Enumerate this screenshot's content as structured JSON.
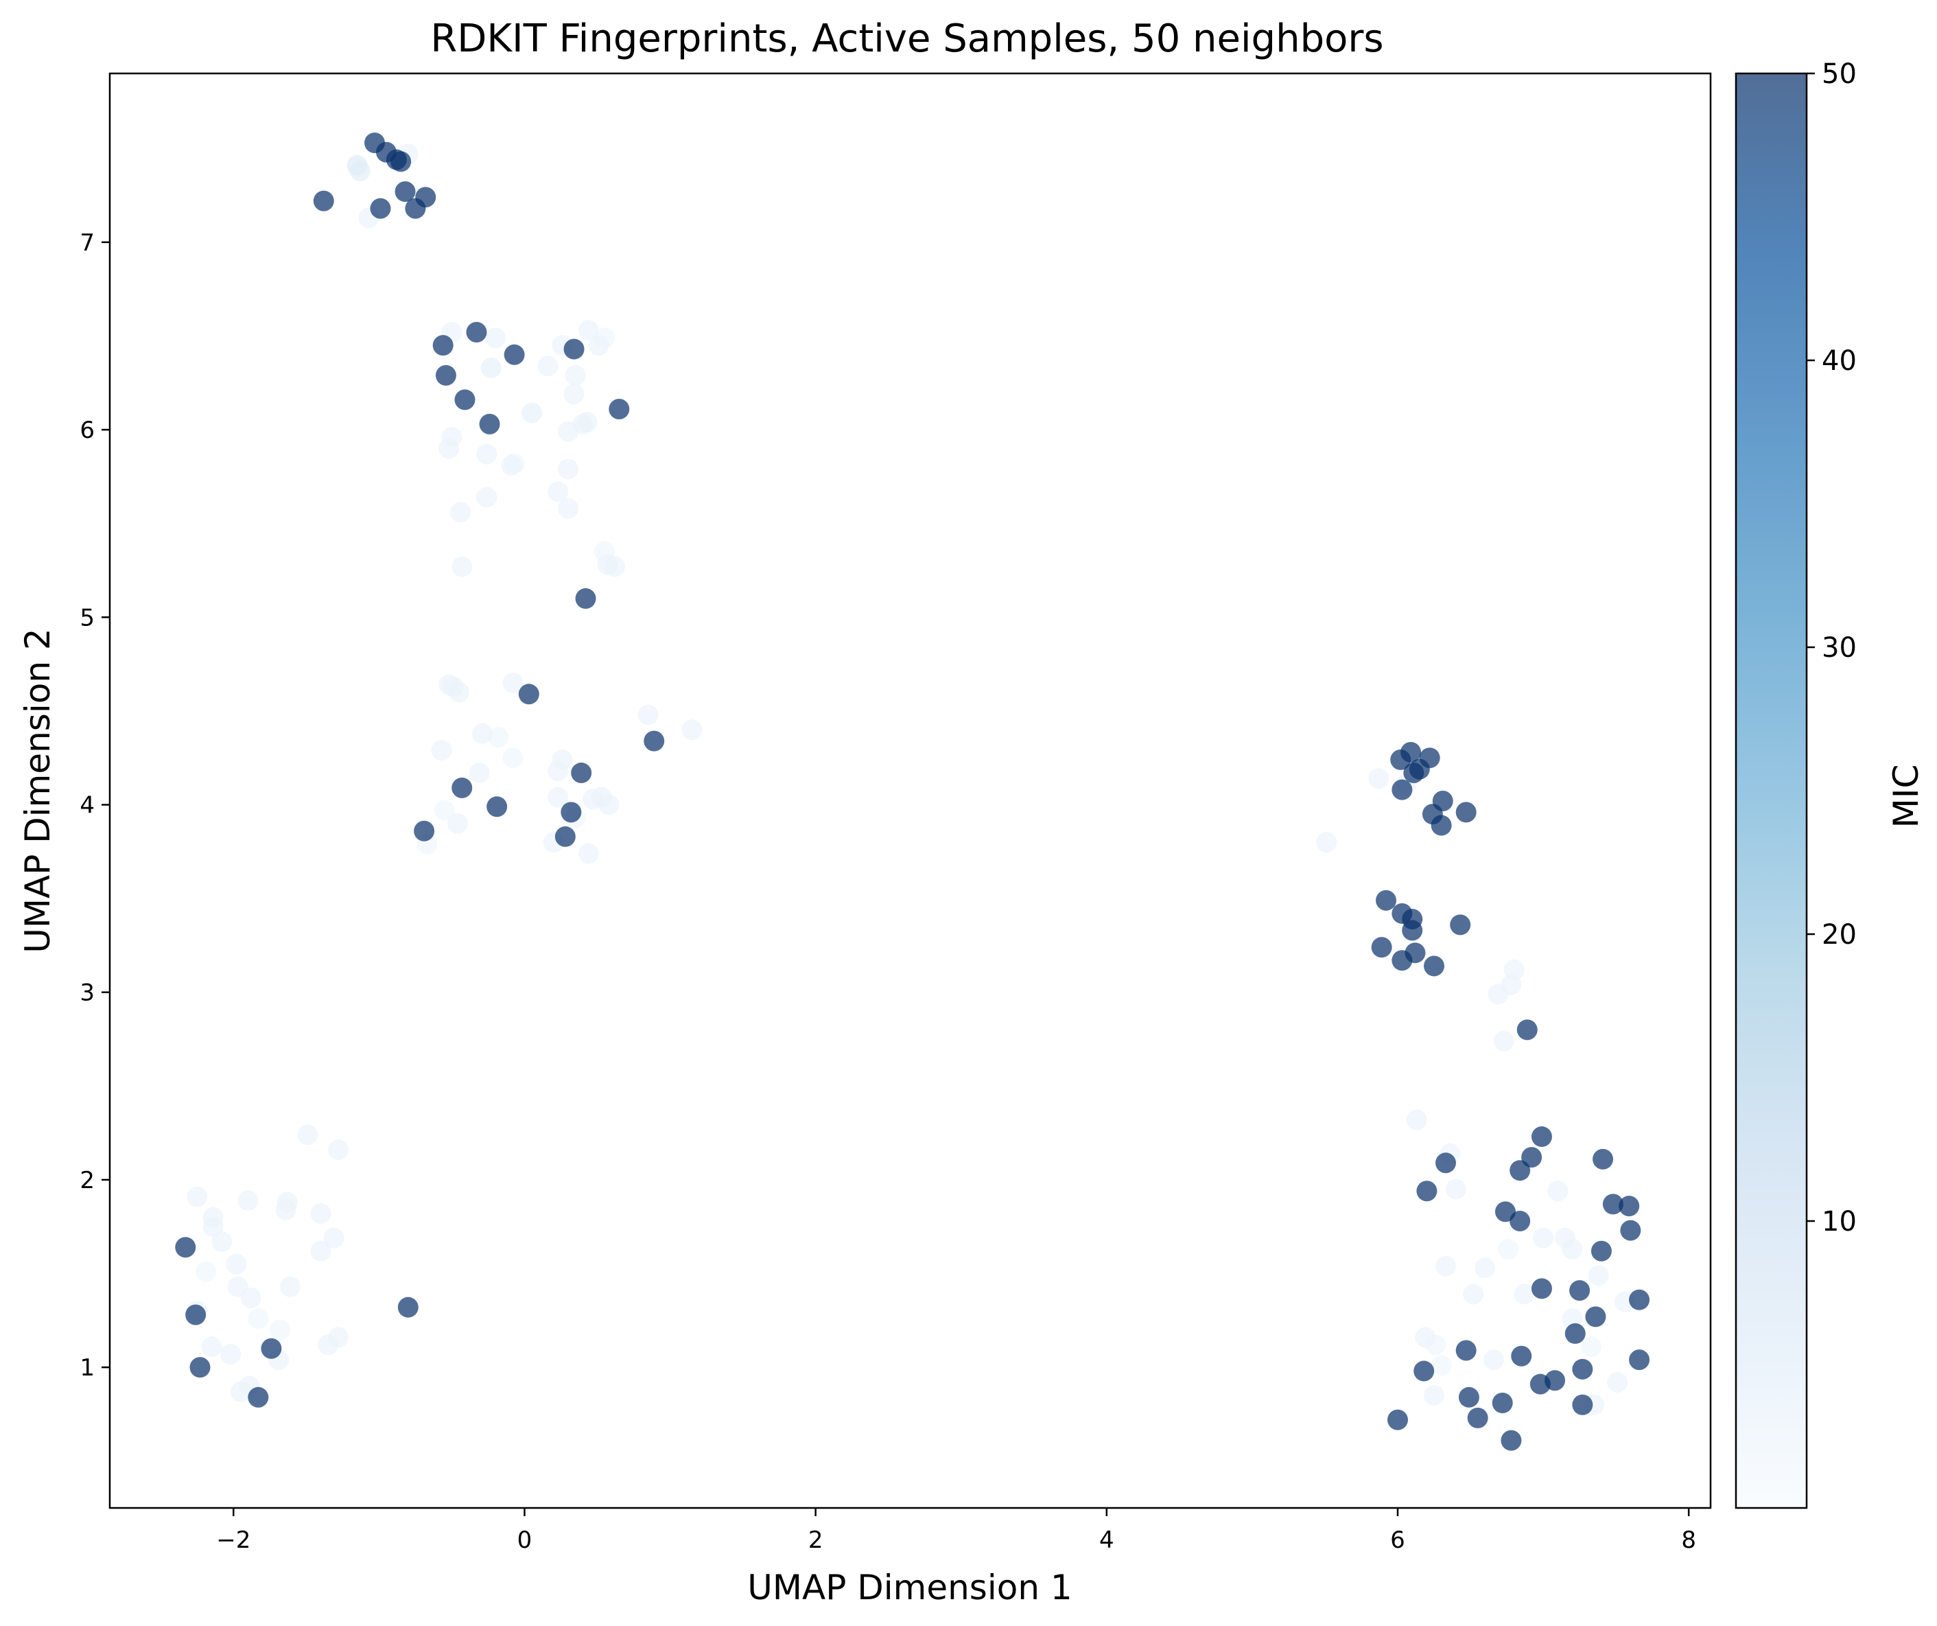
{
  "chart_data": {
    "type": "scatter",
    "title": "RDKIT Fingerprints, Active Samples, 50 neighbors",
    "xlabel": "UMAP Dimension 1",
    "ylabel": "UMAP Dimension 2",
    "xlim": [
      -2.85,
      8.15
    ],
    "ylim": [
      0.25,
      7.9
    ],
    "xticks": [
      -2,
      0,
      2,
      4,
      6,
      8
    ],
    "xtick_labels": [
      "−2",
      "0",
      "2",
      "4",
      "6",
      "8"
    ],
    "yticks": [
      1,
      2,
      3,
      4,
      5,
      6,
      7
    ],
    "ytick_labels": [
      "1",
      "2",
      "3",
      "4",
      "5",
      "6",
      "7"
    ],
    "grid": false,
    "colorbar": {
      "label": "MIC",
      "range": [
        0,
        50
      ],
      "ticks": [
        10,
        20,
        30,
        40,
        50
      ],
      "tick_labels": [
        "10",
        "20",
        "30",
        "40",
        "50"
      ],
      "colormap": "Blues",
      "colors": [
        "#f7fbff",
        "#deebf7",
        "#c6dbef",
        "#9ecae1",
        "#6baed6",
        "#4292c6",
        "#2171b5",
        "#08519c",
        "#08306b"
      ]
    },
    "marker_alpha": 0.7,
    "points": [
      {
        "x": -1.03,
        "y": 7.53,
        "mic": 50
      },
      {
        "x": -0.95,
        "y": 7.48,
        "mic": 50
      },
      {
        "x": -0.88,
        "y": 7.44,
        "mic": 50
      },
      {
        "x": -0.8,
        "y": 7.47,
        "mic": 3
      },
      {
        "x": -1.15,
        "y": 7.41,
        "mic": 6
      },
      {
        "x": -1.13,
        "y": 7.38,
        "mic": 5
      },
      {
        "x": -0.85,
        "y": 7.43,
        "mic": 50
      },
      {
        "x": -0.82,
        "y": 7.27,
        "mic": 50
      },
      {
        "x": -0.68,
        "y": 7.24,
        "mic": 50
      },
      {
        "x": -1.38,
        "y": 7.22,
        "mic": 50
      },
      {
        "x": -0.99,
        "y": 7.18,
        "mic": 50
      },
      {
        "x": -0.75,
        "y": 7.18,
        "mic": 50
      },
      {
        "x": -1.07,
        "y": 7.13,
        "mic": 3
      },
      {
        "x": -0.56,
        "y": 6.45,
        "mic": 50
      },
      {
        "x": -0.33,
        "y": 6.52,
        "mic": 50
      },
      {
        "x": -0.5,
        "y": 6.52,
        "mic": 3
      },
      {
        "x": -0.2,
        "y": 6.49,
        "mic": 3
      },
      {
        "x": -0.07,
        "y": 6.4,
        "mic": 50
      },
      {
        "x": -0.23,
        "y": 6.33,
        "mic": 4
      },
      {
        "x": -0.54,
        "y": 6.29,
        "mic": 50
      },
      {
        "x": -0.41,
        "y": 6.16,
        "mic": 50
      },
      {
        "x": -0.24,
        "y": 6.03,
        "mic": 50
      },
      {
        "x": 0.05,
        "y": 6.09,
        "mic": 4
      },
      {
        "x": 0.26,
        "y": 6.45,
        "mic": 3
      },
      {
        "x": 0.34,
        "y": 6.43,
        "mic": 50
      },
      {
        "x": 0.44,
        "y": 6.53,
        "mic": 3
      },
      {
        "x": 0.51,
        "y": 6.45,
        "mic": 3
      },
      {
        "x": 0.55,
        "y": 6.49,
        "mic": 2
      },
      {
        "x": 0.16,
        "y": 6.34,
        "mic": 3
      },
      {
        "x": 0.35,
        "y": 6.29,
        "mic": 3
      },
      {
        "x": 0.34,
        "y": 6.19,
        "mic": 3
      },
      {
        "x": 0.65,
        "y": 6.11,
        "mic": 50
      },
      {
        "x": 0.4,
        "y": 6.03,
        "mic": 3
      },
      {
        "x": 0.3,
        "y": 5.99,
        "mic": 3
      },
      {
        "x": 0.43,
        "y": 6.04,
        "mic": 3
      },
      {
        "x": -0.5,
        "y": 5.96,
        "mic": 3
      },
      {
        "x": -0.52,
        "y": 5.9,
        "mic": 3
      },
      {
        "x": -0.26,
        "y": 5.87,
        "mic": 3
      },
      {
        "x": -0.09,
        "y": 5.81,
        "mic": 3
      },
      {
        "x": -0.07,
        "y": 5.82,
        "mic": 2
      },
      {
        "x": 0.3,
        "y": 5.79,
        "mic": 3
      },
      {
        "x": 0.23,
        "y": 5.67,
        "mic": 3
      },
      {
        "x": -0.26,
        "y": 5.64,
        "mic": 3
      },
      {
        "x": -0.44,
        "y": 5.56,
        "mic": 3
      },
      {
        "x": 0.3,
        "y": 5.58,
        "mic": 3
      },
      {
        "x": 0.55,
        "y": 5.35,
        "mic": 2
      },
      {
        "x": 0.57,
        "y": 5.28,
        "mic": 3
      },
      {
        "x": 0.62,
        "y": 5.27,
        "mic": 3
      },
      {
        "x": -0.43,
        "y": 5.27,
        "mic": 3
      },
      {
        "x": 0.42,
        "y": 5.1,
        "mic": 50
      },
      {
        "x": -0.52,
        "y": 4.64,
        "mic": 3
      },
      {
        "x": -0.49,
        "y": 4.63,
        "mic": 3
      },
      {
        "x": -0.45,
        "y": 4.6,
        "mic": 3
      },
      {
        "x": -0.08,
        "y": 4.65,
        "mic": 3
      },
      {
        "x": 0.03,
        "y": 4.59,
        "mic": 50
      },
      {
        "x": 0.85,
        "y": 4.48,
        "mic": 3
      },
      {
        "x": 1.15,
        "y": 4.4,
        "mic": 3
      },
      {
        "x": 0.89,
        "y": 4.34,
        "mic": 50
      },
      {
        "x": -0.57,
        "y": 4.29,
        "mic": 3
      },
      {
        "x": -0.29,
        "y": 4.38,
        "mic": 3
      },
      {
        "x": -0.18,
        "y": 4.36,
        "mic": 2
      },
      {
        "x": -0.08,
        "y": 4.25,
        "mic": 2
      },
      {
        "x": 0.26,
        "y": 4.24,
        "mic": 3
      },
      {
        "x": 0.23,
        "y": 4.18,
        "mic": 3
      },
      {
        "x": 0.39,
        "y": 4.17,
        "mic": 50
      },
      {
        "x": -0.31,
        "y": 4.17,
        "mic": 3
      },
      {
        "x": -0.43,
        "y": 4.09,
        "mic": 50
      },
      {
        "x": 0.23,
        "y": 4.04,
        "mic": 3
      },
      {
        "x": 0.47,
        "y": 4.03,
        "mic": 3
      },
      {
        "x": 0.53,
        "y": 4.04,
        "mic": 3
      },
      {
        "x": 0.58,
        "y": 4.0,
        "mic": 3
      },
      {
        "x": -0.19,
        "y": 3.99,
        "mic": 50
      },
      {
        "x": -0.55,
        "y": 3.97,
        "mic": 2
      },
      {
        "x": -0.46,
        "y": 3.9,
        "mic": 3
      },
      {
        "x": 0.32,
        "y": 3.96,
        "mic": 50
      },
      {
        "x": 0.35,
        "y": 3.93,
        "mic": 2
      },
      {
        "x": -0.69,
        "y": 3.86,
        "mic": 50
      },
      {
        "x": -0.67,
        "y": 3.79,
        "mic": 2
      },
      {
        "x": 0.28,
        "y": 3.83,
        "mic": 50
      },
      {
        "x": 0.2,
        "y": 3.8,
        "mic": 3
      },
      {
        "x": 0.44,
        "y": 3.74,
        "mic": 3
      },
      {
        "x": -1.49,
        "y": 2.24,
        "mic": 3
      },
      {
        "x": -1.28,
        "y": 2.16,
        "mic": 3
      },
      {
        "x": -2.25,
        "y": 1.91,
        "mic": 3
      },
      {
        "x": -1.9,
        "y": 1.89,
        "mic": 3
      },
      {
        "x": -1.63,
        "y": 1.88,
        "mic": 3
      },
      {
        "x": -1.64,
        "y": 1.84,
        "mic": 3
      },
      {
        "x": -1.4,
        "y": 1.82,
        "mic": 3
      },
      {
        "x": -2.14,
        "y": 1.8,
        "mic": 3
      },
      {
        "x": -2.14,
        "y": 1.75,
        "mic": 3
      },
      {
        "x": -2.08,
        "y": 1.67,
        "mic": 3
      },
      {
        "x": -1.31,
        "y": 1.69,
        "mic": 3
      },
      {
        "x": -1.4,
        "y": 1.62,
        "mic": 3
      },
      {
        "x": -2.33,
        "y": 1.64,
        "mic": 50
      },
      {
        "x": -2.19,
        "y": 1.51,
        "mic": 2
      },
      {
        "x": -1.98,
        "y": 1.55,
        "mic": 3
      },
      {
        "x": -1.61,
        "y": 1.43,
        "mic": 3
      },
      {
        "x": -1.97,
        "y": 1.43,
        "mic": 3
      },
      {
        "x": -1.88,
        "y": 1.37,
        "mic": 3
      },
      {
        "x": -2.25,
        "y": 1.3,
        "mic": 3
      },
      {
        "x": -2.26,
        "y": 1.28,
        "mic": 50
      },
      {
        "x": -1.83,
        "y": 1.26,
        "mic": 2
      },
      {
        "x": -1.68,
        "y": 1.2,
        "mic": 2
      },
      {
        "x": -1.28,
        "y": 1.16,
        "mic": 3
      },
      {
        "x": -1.35,
        "y": 1.12,
        "mic": 3
      },
      {
        "x": -2.15,
        "y": 1.11,
        "mic": 3
      },
      {
        "x": -1.74,
        "y": 1.1,
        "mic": 50
      },
      {
        "x": -2.02,
        "y": 1.07,
        "mic": 3
      },
      {
        "x": -1.69,
        "y": 1.04,
        "mic": 3
      },
      {
        "x": -2.23,
        "y": 1.0,
        "mic": 50
      },
      {
        "x": -1.89,
        "y": 0.9,
        "mic": 3
      },
      {
        "x": -1.95,
        "y": 0.87,
        "mic": 3
      },
      {
        "x": -1.83,
        "y": 0.84,
        "mic": 50
      },
      {
        "x": -0.8,
        "y": 1.32,
        "mic": 50
      },
      {
        "x": 6.09,
        "y": 4.28,
        "mic": 50
      },
      {
        "x": 6.02,
        "y": 4.24,
        "mic": 50
      },
      {
        "x": 6.22,
        "y": 4.25,
        "mic": 50
      },
      {
        "x": 6.11,
        "y": 4.17,
        "mic": 50
      },
      {
        "x": 6.15,
        "y": 4.19,
        "mic": 50
      },
      {
        "x": 5.87,
        "y": 4.14,
        "mic": 3
      },
      {
        "x": 6.06,
        "y": 4.11,
        "mic": 3
      },
      {
        "x": 6.03,
        "y": 4.08,
        "mic": 50
      },
      {
        "x": 6.31,
        "y": 4.02,
        "mic": 50
      },
      {
        "x": 6.24,
        "y": 3.95,
        "mic": 50
      },
      {
        "x": 6.47,
        "y": 3.96,
        "mic": 50
      },
      {
        "x": 6.3,
        "y": 3.89,
        "mic": 50
      },
      {
        "x": 5.51,
        "y": 3.8,
        "mic": 3
      },
      {
        "x": 5.92,
        "y": 3.49,
        "mic": 50
      },
      {
        "x": 6.03,
        "y": 3.42,
        "mic": 50
      },
      {
        "x": 6.1,
        "y": 3.39,
        "mic": 50
      },
      {
        "x": 6.43,
        "y": 3.36,
        "mic": 50
      },
      {
        "x": 6.1,
        "y": 3.33,
        "mic": 50
      },
      {
        "x": 5.89,
        "y": 3.24,
        "mic": 50
      },
      {
        "x": 6.12,
        "y": 3.21,
        "mic": 50
      },
      {
        "x": 6.03,
        "y": 3.17,
        "mic": 50
      },
      {
        "x": 6.25,
        "y": 3.14,
        "mic": 50
      },
      {
        "x": 6.8,
        "y": 3.12,
        "mic": 3
      },
      {
        "x": 6.78,
        "y": 3.04,
        "mic": 3
      },
      {
        "x": 6.69,
        "y": 2.99,
        "mic": 3
      },
      {
        "x": 6.89,
        "y": 2.8,
        "mic": 50
      },
      {
        "x": 6.73,
        "y": 2.74,
        "mic": 3
      },
      {
        "x": 6.13,
        "y": 2.32,
        "mic": 3
      },
      {
        "x": 6.99,
        "y": 2.23,
        "mic": 50
      },
      {
        "x": 6.92,
        "y": 2.12,
        "mic": 50
      },
      {
        "x": 7.41,
        "y": 2.11,
        "mic": 50
      },
      {
        "x": 6.36,
        "y": 2.14,
        "mic": 3
      },
      {
        "x": 6.33,
        "y": 2.09,
        "mic": 50
      },
      {
        "x": 6.84,
        "y": 2.05,
        "mic": 50
      },
      {
        "x": 7.1,
        "y": 1.94,
        "mic": 3
      },
      {
        "x": 6.4,
        "y": 1.95,
        "mic": 3
      },
      {
        "x": 6.2,
        "y": 1.94,
        "mic": 50
      },
      {
        "x": 7.48,
        "y": 1.87,
        "mic": 50
      },
      {
        "x": 7.59,
        "y": 1.86,
        "mic": 50
      },
      {
        "x": 6.74,
        "y": 1.83,
        "mic": 50
      },
      {
        "x": 6.84,
        "y": 1.78,
        "mic": 50
      },
      {
        "x": 7.6,
        "y": 1.73,
        "mic": 50
      },
      {
        "x": 7.0,
        "y": 1.69,
        "mic": 3
      },
      {
        "x": 7.15,
        "y": 1.69,
        "mic": 3
      },
      {
        "x": 7.2,
        "y": 1.63,
        "mic": 3
      },
      {
        "x": 7.4,
        "y": 1.62,
        "mic": 50
      },
      {
        "x": 6.76,
        "y": 1.63,
        "mic": 2
      },
      {
        "x": 6.33,
        "y": 1.54,
        "mic": 3
      },
      {
        "x": 6.6,
        "y": 1.53,
        "mic": 3
      },
      {
        "x": 7.38,
        "y": 1.49,
        "mic": 3
      },
      {
        "x": 6.99,
        "y": 1.42,
        "mic": 50
      },
      {
        "x": 7.25,
        "y": 1.41,
        "mic": 50
      },
      {
        "x": 6.87,
        "y": 1.39,
        "mic": 3
      },
      {
        "x": 6.52,
        "y": 1.39,
        "mic": 3
      },
      {
        "x": 7.56,
        "y": 1.35,
        "mic": 3
      },
      {
        "x": 7.66,
        "y": 1.36,
        "mic": 50
      },
      {
        "x": 7.36,
        "y": 1.27,
        "mic": 50
      },
      {
        "x": 7.2,
        "y": 1.26,
        "mic": 3
      },
      {
        "x": 7.22,
        "y": 1.18,
        "mic": 50
      },
      {
        "x": 6.19,
        "y": 1.16,
        "mic": 3
      },
      {
        "x": 6.26,
        "y": 1.12,
        "mic": 2
      },
      {
        "x": 7.33,
        "y": 1.11,
        "mic": 2
      },
      {
        "x": 6.47,
        "y": 1.09,
        "mic": 50
      },
      {
        "x": 6.85,
        "y": 1.06,
        "mic": 50
      },
      {
        "x": 7.66,
        "y": 1.04,
        "mic": 50
      },
      {
        "x": 6.66,
        "y": 1.04,
        "mic": 3
      },
      {
        "x": 6.3,
        "y": 1.01,
        "mic": 2
      },
      {
        "x": 7.27,
        "y": 0.99,
        "mic": 50
      },
      {
        "x": 6.18,
        "y": 0.98,
        "mic": 50
      },
      {
        "x": 7.08,
        "y": 0.93,
        "mic": 50
      },
      {
        "x": 6.98,
        "y": 0.91,
        "mic": 50
      },
      {
        "x": 7.51,
        "y": 0.92,
        "mic": 3
      },
      {
        "x": 6.49,
        "y": 0.84,
        "mic": 50
      },
      {
        "x": 6.25,
        "y": 0.85,
        "mic": 3
      },
      {
        "x": 6.72,
        "y": 0.81,
        "mic": 50
      },
      {
        "x": 7.27,
        "y": 0.8,
        "mic": 50
      },
      {
        "x": 7.35,
        "y": 0.8,
        "mic": 3
      },
      {
        "x": 6.55,
        "y": 0.73,
        "mic": 50
      },
      {
        "x": 6.0,
        "y": 0.72,
        "mic": 50
      },
      {
        "x": 6.78,
        "y": 0.61,
        "mic": 50
      }
    ]
  }
}
